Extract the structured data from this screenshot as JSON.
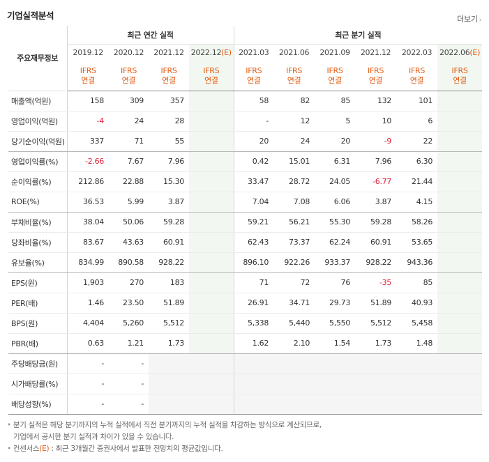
{
  "header": {
    "title": "기업실적분석",
    "more_label": "더보기",
    "more_icon": "chevron-right-icon"
  },
  "table": {
    "row_head_label": "주요재무정보",
    "group_annual": "최근 연간 실적",
    "group_quarter": "최근 분기 실적",
    "periods": [
      "2019.12",
      "2020.12",
      "2021.12",
      "2022.12",
      "2021.03",
      "2021.06",
      "2021.09",
      "2021.12",
      "2022.03",
      "2022.06"
    ],
    "estimate_mark": "(E)",
    "accounting_l1": "IFRS",
    "accounting_l2": "연결",
    "rows": [
      {
        "label": "매출액(억원)",
        "cells": [
          "158",
          "309",
          "357",
          "",
          "58",
          "82",
          "85",
          "132",
          "101",
          ""
        ]
      },
      {
        "label": "영업이익(억원)",
        "cells": [
          "-4",
          "24",
          "28",
          "",
          "-",
          "12",
          "5",
          "10",
          "6",
          ""
        ]
      },
      {
        "label": "당기순이익(억원)",
        "cells": [
          "337",
          "71",
          "55",
          "",
          "20",
          "24",
          "20",
          "-9",
          "22",
          ""
        ]
      },
      {
        "label": "영업이익률(%)",
        "cells": [
          "-2.66",
          "7.67",
          "7.96",
          "",
          "0.42",
          "15.01",
          "6.31",
          "7.96",
          "6.30",
          ""
        ]
      },
      {
        "label": "순이익률(%)",
        "cells": [
          "212.86",
          "22.88",
          "15.30",
          "",
          "33.47",
          "28.72",
          "24.05",
          "-6.77",
          "21.44",
          ""
        ]
      },
      {
        "label": "ROE(%)",
        "cells": [
          "36.53",
          "5.99",
          "3.87",
          "",
          "7.04",
          "7.08",
          "6.06",
          "3.87",
          "4.15",
          ""
        ]
      },
      {
        "label": "부채비율(%)",
        "cells": [
          "38.04",
          "50.06",
          "59.28",
          "",
          "59.21",
          "56.21",
          "55.30",
          "59.28",
          "58.26",
          ""
        ]
      },
      {
        "label": "당좌비율(%)",
        "cells": [
          "83.67",
          "43.63",
          "60.91",
          "",
          "62.43",
          "73.37",
          "62.24",
          "60.91",
          "53.65",
          ""
        ]
      },
      {
        "label": "유보율(%)",
        "cells": [
          "834.99",
          "890.58",
          "928.22",
          "",
          "896.10",
          "922.26",
          "933.37",
          "928.22",
          "943.36",
          ""
        ]
      },
      {
        "label": "EPS(원)",
        "cells": [
          "1,903",
          "270",
          "183",
          "",
          "71",
          "72",
          "76",
          "-35",
          "85",
          ""
        ]
      },
      {
        "label": "PER(배)",
        "cells": [
          "1.46",
          "23.50",
          "51.89",
          "",
          "26.91",
          "34.71",
          "29.73",
          "51.89",
          "40.93",
          ""
        ]
      },
      {
        "label": "BPS(원)",
        "cells": [
          "4,404",
          "5,260",
          "5,512",
          "",
          "5,338",
          "5,440",
          "5,550",
          "5,512",
          "5,458",
          ""
        ]
      },
      {
        "label": "PBR(배)",
        "cells": [
          "0.63",
          "1.21",
          "1.73",
          "",
          "1.62",
          "2.10",
          "1.54",
          "1.73",
          "1.48",
          ""
        ]
      },
      {
        "label": "주당배당금(원)",
        "cells": [
          "-",
          "-",
          "",
          "",
          "",
          "",
          "",
          "",
          "",
          ""
        ]
      },
      {
        "label": "시가배당률(%)",
        "cells": [
          "-",
          "-",
          "",
          "",
          "",
          "",
          "",
          "",
          "",
          ""
        ]
      },
      {
        "label": "배당성향(%)",
        "cells": [
          "-",
          "-",
          "",
          "",
          "",
          "",
          "",
          "",
          "",
          ""
        ]
      }
    ]
  },
  "notes": {
    "note1_line1": "분기 실적은 해당 분기까지의 누적 실적에서 직전 분기까지의 누적 실적을 차감하는 방식으로 계산되므로,",
    "note1_line2": "기업에서 공시한 분기 실적과 차이가 있을 수 있습니다.",
    "note2_a": "컨센서스",
    "note2_e": "(E)",
    "note2_b": " : 최근 3개월간 증권사에서 발표한 전망치의 평균값입니다."
  },
  "colors": {
    "negative": "#e0203a",
    "estimate": "#e25a0f",
    "estimate_bg": "#f2f8f1",
    "empty_bg": "#f5f5f5"
  }
}
